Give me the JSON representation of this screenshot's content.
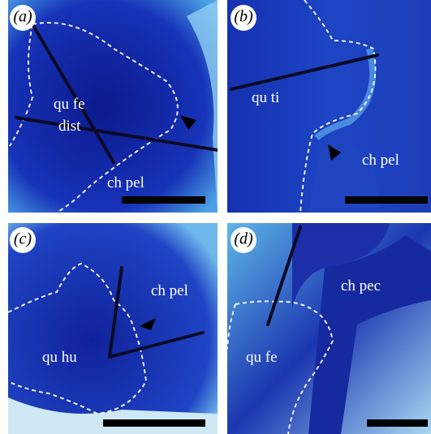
{
  "panels": [
    {
      "label": "(a)",
      "texts": [
        "qu fe",
        "dist",
        "ch pel"
      ]
    },
    {
      "label": "(b)",
      "texts": [
        "qu ti",
        "ch pel"
      ]
    },
    {
      "label": "(c)",
      "texts": [
        "ch pel",
        "qu hu"
      ]
    },
    {
      "label": "(d)",
      "texts": [
        "ch pec",
        "qu fe"
      ]
    }
  ]
}
